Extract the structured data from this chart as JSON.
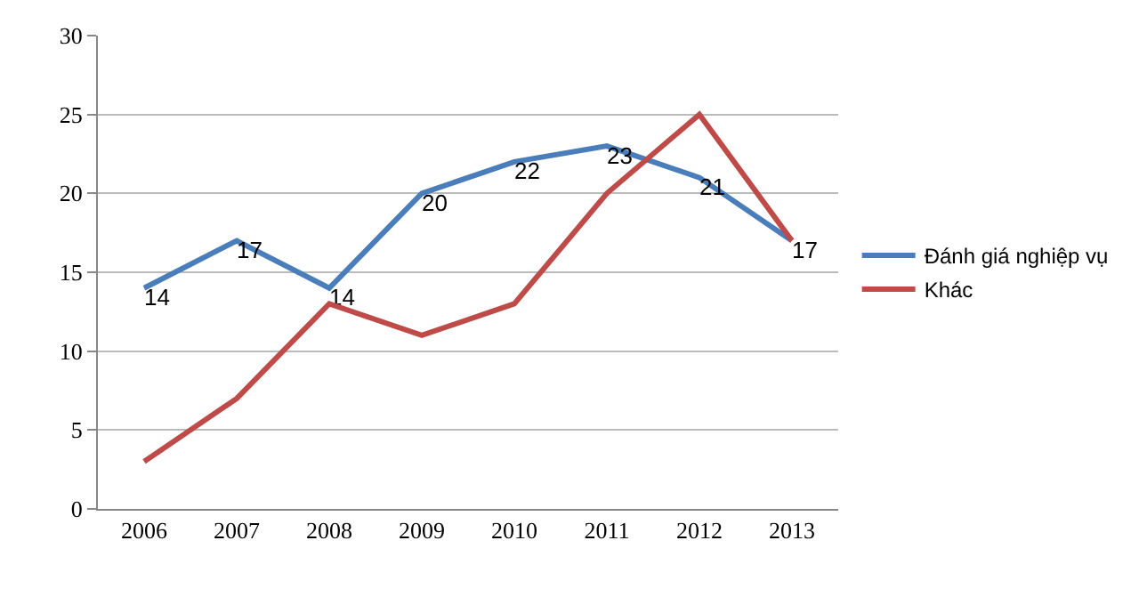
{
  "chart_data": {
    "type": "line",
    "categories": [
      "2006",
      "2007",
      "2008",
      "2009",
      "2010",
      "2011",
      "2012",
      "2013"
    ],
    "series": [
      {
        "name": "Đánh giá nghiệp vụ",
        "color": "#4a7ebb",
        "values": [
          14,
          17,
          14,
          20,
          22,
          23,
          21,
          17
        ],
        "value_labels": [
          "14",
          "17",
          "14",
          "20",
          "22",
          "23",
          "21",
          "17"
        ]
      },
      {
        "name": "Khác",
        "color": "#be4b48",
        "values": [
          3,
          7,
          13,
          11,
          13,
          20,
          25,
          17
        ]
      }
    ],
    "ylim": [
      0,
      30
    ],
    "yticks": [
      0,
      5,
      10,
      15,
      20,
      25,
      30
    ],
    "grid": "y",
    "legend": "right",
    "marker": "none",
    "line_style": "solid"
  }
}
